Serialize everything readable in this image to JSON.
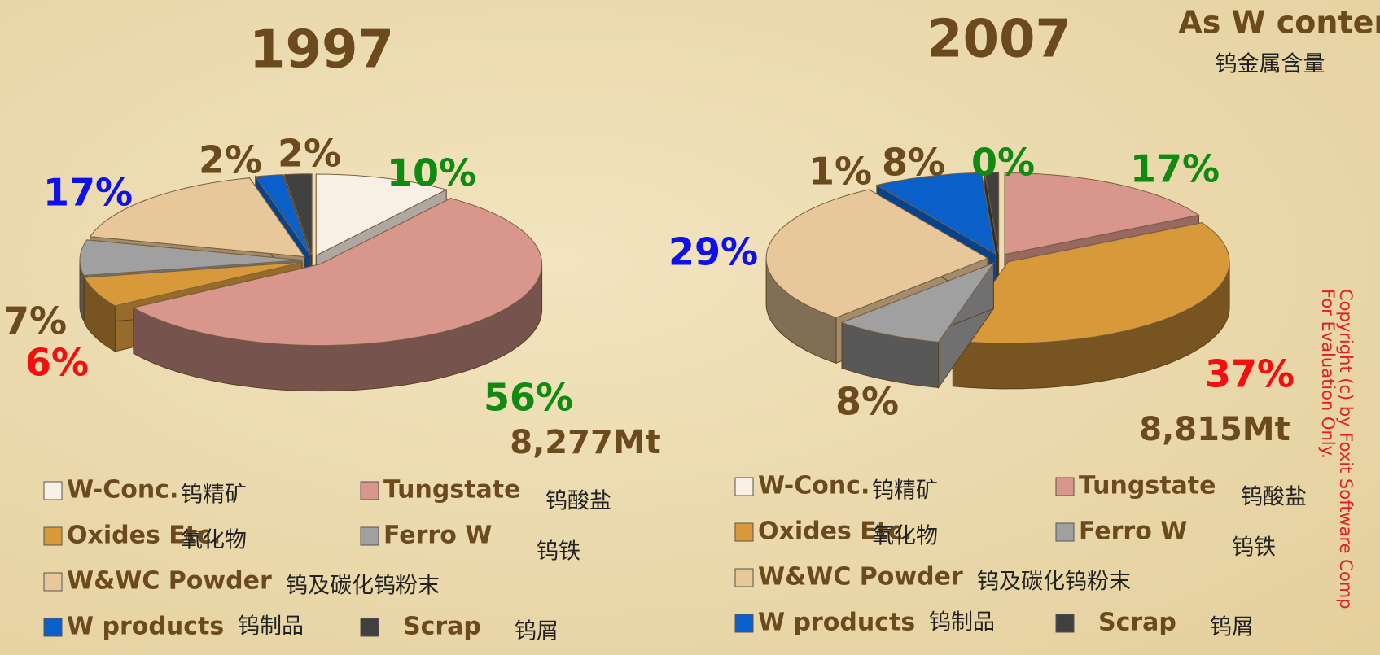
{
  "unit_note": [
    "As W content",
    "钨金属含量"
  ],
  "watermark": [
    "Copyright (c) by Foxit Software Comp",
    "For Evaluation Only."
  ],
  "chart_data": [
    {
      "type": "pie",
      "title": "1997",
      "total_label": "8,277Mt",
      "categories": [
        "W-Conc.",
        "Tungstate",
        "Oxides Etc.",
        "Ferro W",
        "W&WC Powder",
        "W products",
        "Scrap"
      ],
      "categories_cn": [
        "钨精矿",
        "钨酸盐",
        "氧化物",
        "钨铁",
        "钨及碳化钨粉末",
        "钨制品",
        "钨屑"
      ],
      "values": [
        10,
        56,
        6,
        7,
        17,
        2,
        2
      ],
      "value_labels": [
        "10%",
        "56%",
        "6%",
        "7%",
        "17%",
        "2%",
        "2%"
      ],
      "colors": [
        "#f8f0e4",
        "#d9968c",
        "#d8993a",
        "#a0a0a0",
        "#e8c89a",
        "#0a5fc8",
        "#404040"
      ],
      "label_colors": [
        "#108a10",
        "#108a10",
        "#f01010",
        "#6b4a1e",
        "#1010e8",
        "#6b4a1e",
        "#6b4a1e"
      ]
    },
    {
      "type": "pie",
      "title": "2007",
      "total_label": "8,815Mt",
      "categories": [
        "W-Conc.",
        "Tungstate",
        "Oxides Etc.",
        "Ferro W",
        "W&WC Powder",
        "W products",
        "Scrap"
      ],
      "categories_cn": [
        "钨精矿",
        "钨酸盐",
        "氧化物",
        "钨铁",
        "钨及碳化钨粉末",
        "钨制品",
        "钨屑"
      ],
      "values": [
        0,
        17,
        37,
        8,
        29,
        8,
        1
      ],
      "value_labels": [
        "0%",
        "17%",
        "37%",
        "8%",
        "29%",
        "8%",
        "1%"
      ],
      "colors": [
        "#f8f0e4",
        "#d9968c",
        "#d8993a",
        "#a0a0a0",
        "#e8c89a",
        "#0a5fc8",
        "#404040"
      ],
      "label_colors": [
        "#108a10",
        "#108a10",
        "#f01010",
        "#6b4a1e",
        "#1010e8",
        "#6b4a1e",
        "#6b4a1e"
      ]
    }
  ]
}
